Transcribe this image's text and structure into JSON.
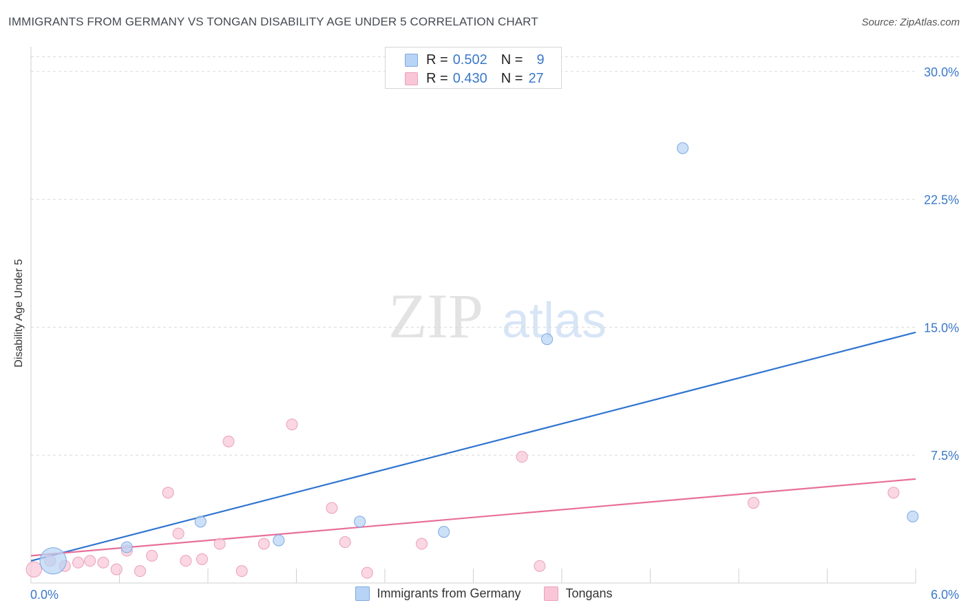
{
  "title": "IMMIGRANTS FROM GERMANY VS TONGAN DISABILITY AGE UNDER 5 CORRELATION CHART",
  "source": "Source: ZipAtlas.com",
  "watermark": {
    "zip": "ZIP",
    "atlas": "atlas"
  },
  "colors": {
    "blue_fill": "#b7d3f5",
    "blue_stroke": "#7fa9e0",
    "blue_line": "#2f74d0",
    "pink_fill": "#f8c6d6",
    "pink_stroke": "#eaa0b9",
    "pink_line": "#e86f9a",
    "tick_label": "#3a78c9",
    "grid": "#d9d9d9"
  },
  "legend_top": [
    {
      "r_label": "R =",
      "r_value": "0.502",
      "n_label": "N =",
      "n_value": "9"
    },
    {
      "r_label": "R =",
      "r_value": "0.430",
      "n_label": "N =",
      "n_value": "27"
    }
  ],
  "legend_bottom": [
    {
      "label": "Immigrants from Germany"
    },
    {
      "label": "Tongans"
    }
  ],
  "chart_data": {
    "type": "scatter",
    "title": "IMMIGRANTS FROM GERMANY VS TONGAN DISABILITY AGE UNDER 5 CORRELATION CHART",
    "xlabel": "",
    "ylabel": "Disability Age Under 5",
    "xlim": [
      0,
      6
    ],
    "ylim": [
      0,
      31
    ],
    "x_tick_labels": [
      "0.0%",
      "6.0%"
    ],
    "y_ticks": [
      7.5,
      15,
      22.5,
      30
    ],
    "y_tick_labels": [
      "7.5%",
      "15.0%",
      "22.5%",
      "30.0%"
    ],
    "grid": "horizontal dashed",
    "legend_placement": "top-center and bottom",
    "series": [
      {
        "name": "Immigrants from Germany",
        "points": [
          {
            "x": 0.15,
            "y": 1.3,
            "size": 2.4
          },
          {
            "x": 0.65,
            "y": 2.1,
            "size": 1
          },
          {
            "x": 1.15,
            "y": 3.6,
            "size": 1
          },
          {
            "x": 1.68,
            "y": 2.5,
            "size": 1
          },
          {
            "x": 2.23,
            "y": 3.6,
            "size": 1
          },
          {
            "x": 2.8,
            "y": 3.0,
            "size": 1
          },
          {
            "x": 3.5,
            "y": 14.3,
            "size": 1
          },
          {
            "x": 4.42,
            "y": 25.5,
            "size": 1
          },
          {
            "x": 5.98,
            "y": 3.9,
            "size": 1
          }
        ],
        "trend": {
          "x": [
            0,
            6
          ],
          "y": [
            1.3,
            14.7
          ]
        }
      },
      {
        "name": "Tongans",
        "points": [
          {
            "x": 0.02,
            "y": 0.8,
            "size": 1.4
          },
          {
            "x": 0.13,
            "y": 1.3,
            "size": 1
          },
          {
            "x": 0.23,
            "y": 1.0,
            "size": 1
          },
          {
            "x": 0.32,
            "y": 1.2,
            "size": 1
          },
          {
            "x": 0.4,
            "y": 1.3,
            "size": 1
          },
          {
            "x": 0.49,
            "y": 1.2,
            "size": 1
          },
          {
            "x": 0.58,
            "y": 0.8,
            "size": 1
          },
          {
            "x": 0.65,
            "y": 1.9,
            "size": 1
          },
          {
            "x": 0.74,
            "y": 0.7,
            "size": 1
          },
          {
            "x": 0.82,
            "y": 1.6,
            "size": 1
          },
          {
            "x": 0.93,
            "y": 5.3,
            "size": 1
          },
          {
            "x": 1.0,
            "y": 2.9,
            "size": 1
          },
          {
            "x": 1.05,
            "y": 1.3,
            "size": 1
          },
          {
            "x": 1.16,
            "y": 1.4,
            "size": 1
          },
          {
            "x": 1.28,
            "y": 2.3,
            "size": 1
          },
          {
            "x": 1.34,
            "y": 8.3,
            "size": 1
          },
          {
            "x": 1.43,
            "y": 0.7,
            "size": 1
          },
          {
            "x": 1.58,
            "y": 2.3,
            "size": 1
          },
          {
            "x": 1.77,
            "y": 9.3,
            "size": 1
          },
          {
            "x": 2.04,
            "y": 4.4,
            "size": 1
          },
          {
            "x": 2.13,
            "y": 2.4,
            "size": 1
          },
          {
            "x": 2.28,
            "y": 0.6,
            "size": 1
          },
          {
            "x": 2.65,
            "y": 2.3,
            "size": 1
          },
          {
            "x": 3.33,
            "y": 7.4,
            "size": 1
          },
          {
            "x": 3.45,
            "y": 1.0,
            "size": 1
          },
          {
            "x": 4.9,
            "y": 4.7,
            "size": 1
          },
          {
            "x": 5.85,
            "y": 5.3,
            "size": 1
          }
        ],
        "trend": {
          "x": [
            0,
            6
          ],
          "y": [
            1.6,
            6.1
          ]
        }
      }
    ]
  }
}
